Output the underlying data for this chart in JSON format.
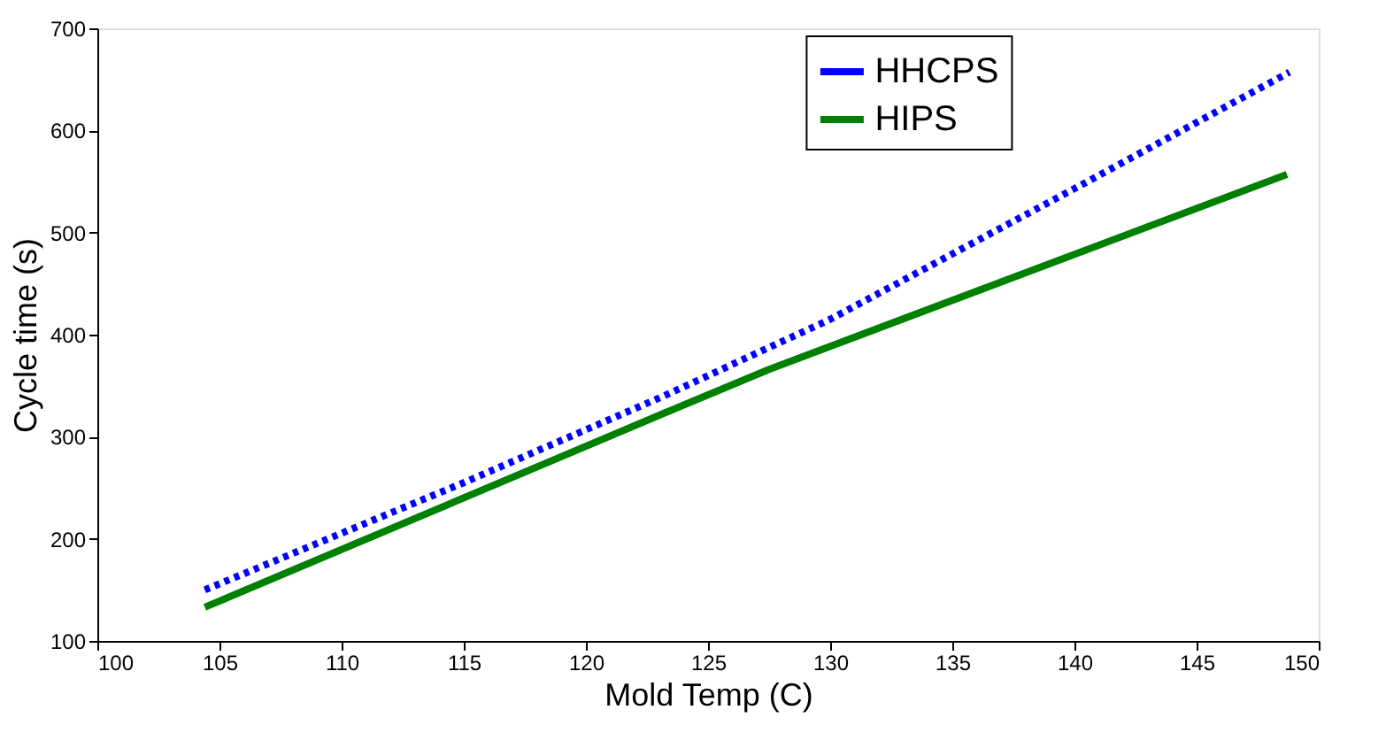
{
  "chart_data": {
    "type": "line",
    "xlabel": "Mold Temp (C)",
    "ylabel": "Cycle time (s)",
    "xlim": [
      100,
      150
    ],
    "xticks": [
      100,
      105,
      110,
      115,
      120,
      125,
      130,
      135,
      140,
      145,
      150
    ],
    "ylim": [
      100,
      700
    ],
    "yticks": [
      100,
      200,
      300,
      400,
      500,
      600,
      700
    ],
    "grid": false,
    "legend": "top right",
    "marker": "none",
    "series": [
      {
        "name": "HHCPS",
        "color": "#0000ff",
        "line_style": "dotted",
        "x": [
          104.4,
          115,
          123.2,
          130,
          140,
          148.8
        ],
        "values": [
          150,
          255,
          340,
          415,
          543,
          657
        ]
      },
      {
        "name": "HIPS",
        "color": "#008000",
        "line_style": "solid",
        "x": [
          104.4,
          123.2,
          127.5,
          148.7
        ],
        "values": [
          133,
          323,
          366,
          557
        ]
      }
    ]
  }
}
